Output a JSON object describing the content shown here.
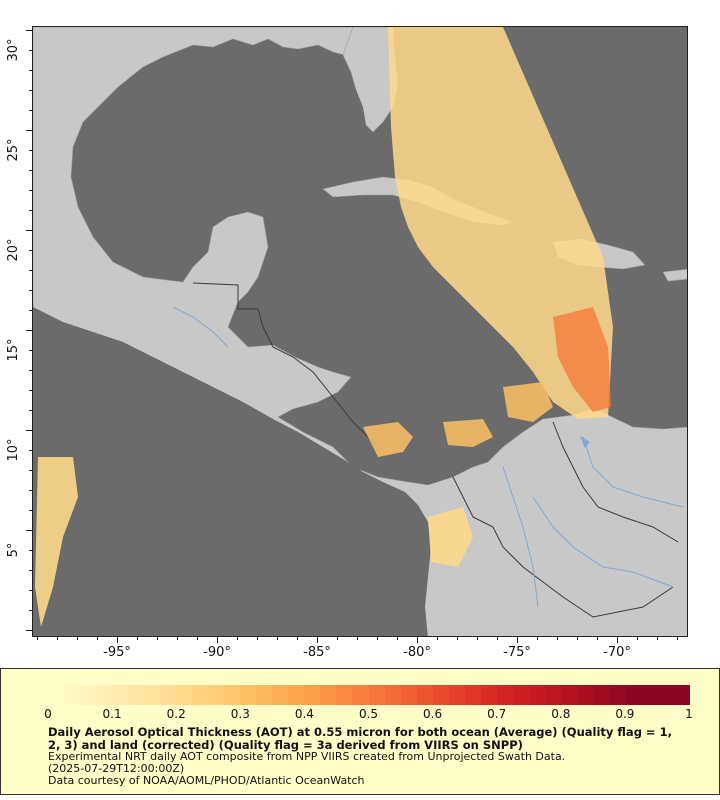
{
  "map": {
    "x_ticks": [
      "-95°",
      "-90°",
      "-85°",
      "-80°",
      "-75°",
      "-70°"
    ],
    "y_ticks": [
      "30°",
      "25°",
      "20°",
      "15°",
      "10°",
      "5°"
    ],
    "colors": {
      "ocean": "#6b6b6b",
      "land": "#c8c8c8",
      "border": "#3a3a3a",
      "river": "#7fa6d6"
    }
  },
  "legend": {
    "colorbar_labels": [
      "0",
      "0.1",
      "0.2",
      "0.3",
      "0.4",
      "0.5",
      "0.6",
      "0.7",
      "0.8",
      "0.9",
      "1"
    ],
    "colorbar_colors": [
      "#fffdc8",
      "#ffeab0",
      "#ffd98a",
      "#fdc063",
      "#fb9e45",
      "#f6763a",
      "#ea4a2e",
      "#d52222",
      "#b4121f",
      "#8c0626"
    ],
    "title": "Daily Aerosol Optical Thickness (AOT) at 0.55 micron for both ocean (Average) (Quality flag = 1, 2, 3) and land (corrected) (Quality flag = 3a derived from VIIRS on SNPP)",
    "note_1": "Experimental NRT daily AOT composite from NPP VIIRS created from Unprojected Swath Data.",
    "note_2": "(2025-07-29T12:00:00Z)",
    "note_3": "Data courtesy of NOAA/AOML/PHOD/Atlantic OceanWatch"
  }
}
